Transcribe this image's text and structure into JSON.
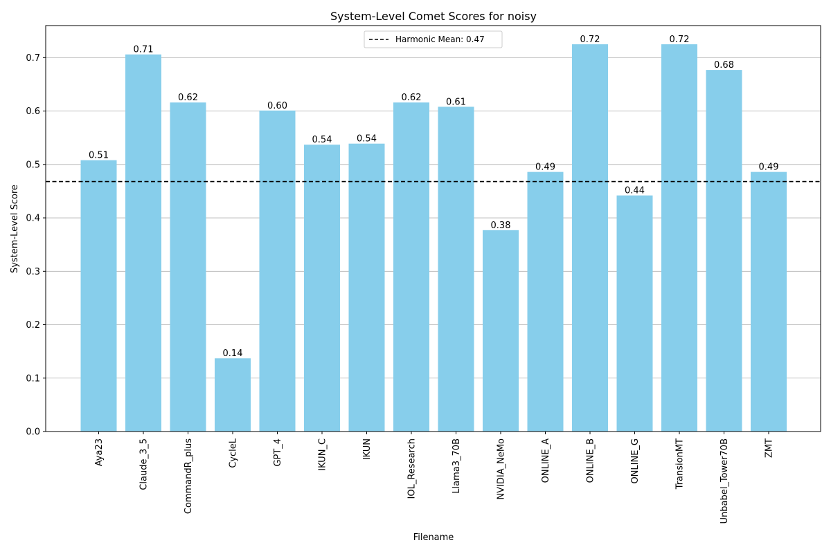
{
  "chart_data": {
    "type": "bar",
    "title": "System-Level Comet Scores for noisy",
    "xlabel": "Filename",
    "ylabel": "System-Level Score",
    "categories": [
      "Aya23",
      "Claude_3_5",
      "CommandR_plus",
      "CycleL",
      "GPT_4",
      "IKUN_C",
      "IKUN",
      "IOL_Research",
      "Llama3_70B",
      "NVIDIA_NeMo",
      "ONLINE_A",
      "ONLINE_B",
      "ONLINE_G",
      "TransionMT",
      "Unbabel_Tower70B",
      "ZMT"
    ],
    "values": [
      0.508,
      0.706,
      0.616,
      0.137,
      0.601,
      0.537,
      0.539,
      0.616,
      0.608,
      0.377,
      0.486,
      0.725,
      0.442,
      0.725,
      0.677,
      0.486
    ],
    "value_labels": [
      "0.51",
      "0.71",
      "0.62",
      "0.14",
      "0.60",
      "0.54",
      "0.54",
      "0.62",
      "0.61",
      "0.38",
      "0.49",
      "0.72",
      "0.44",
      "0.72",
      "0.68",
      "0.49"
    ],
    "ylim": [
      0,
      0.76
    ],
    "yticks": [
      0.0,
      0.1,
      0.2,
      0.3,
      0.4,
      0.5,
      0.6,
      0.7
    ],
    "ytick_labels": [
      "0.0",
      "0.1",
      "0.2",
      "0.3",
      "0.4",
      "0.5",
      "0.6",
      "0.7"
    ],
    "reference_line": {
      "label": "Harmonic Mean: 0.47",
      "value": 0.468,
      "style": "dashed",
      "color": "#000000"
    },
    "bar_color": "#87ceeb",
    "grid": "y",
    "legend_position": "upper-center"
  }
}
